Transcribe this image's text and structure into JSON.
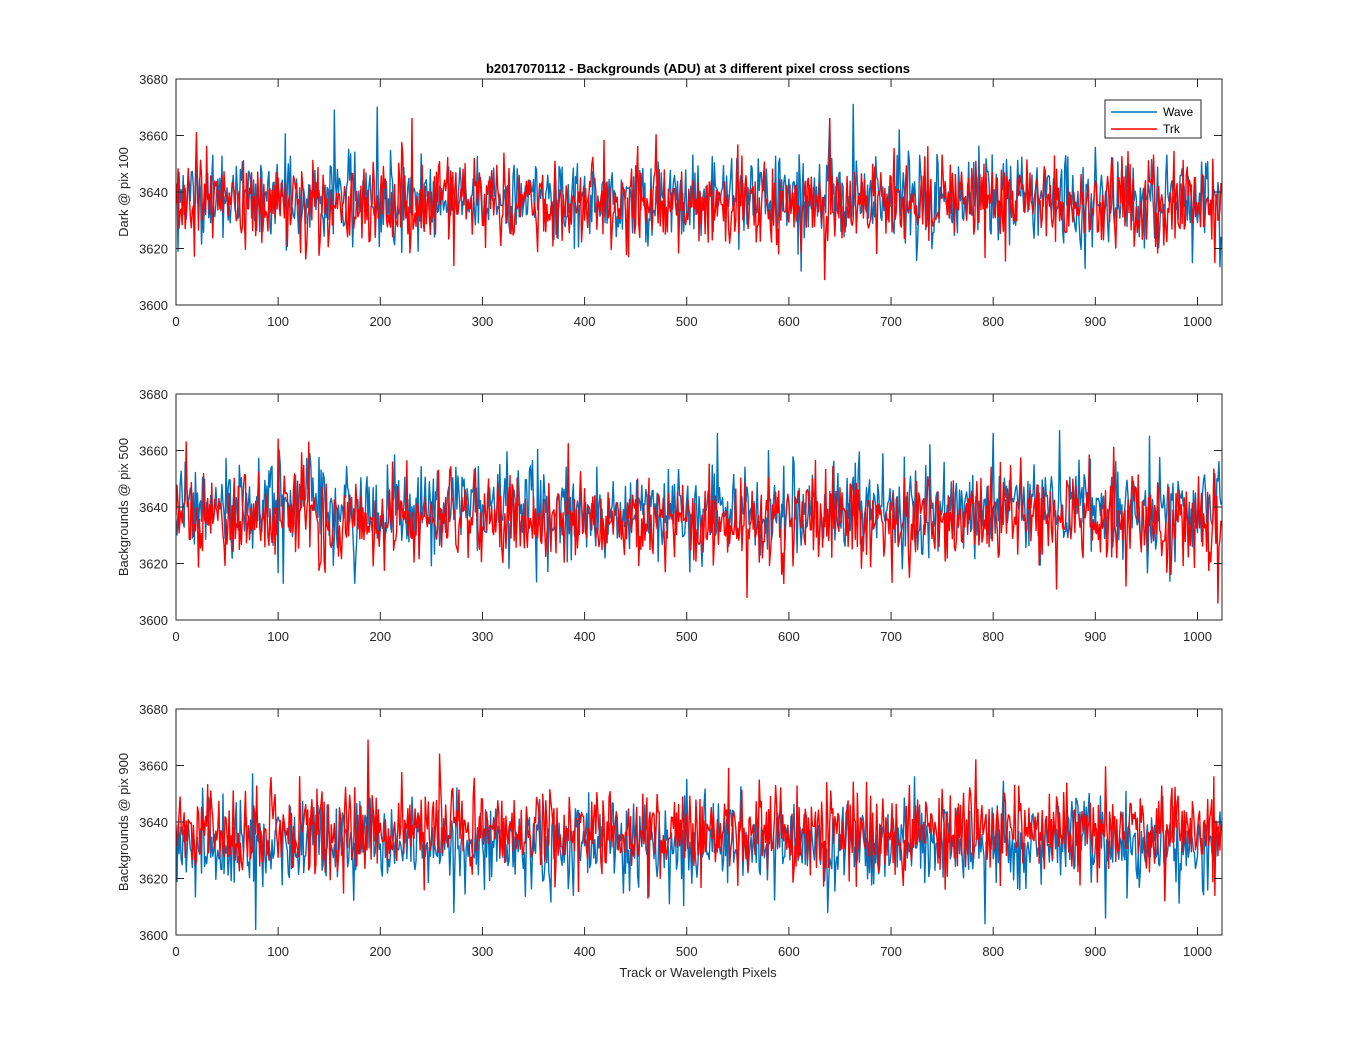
{
  "figure": {
    "title": "b2017070112 - Backgrounds (ADU) at 3 different pixel cross sections",
    "xlabel": "Track or Wavelength Pixels"
  },
  "colors": {
    "wave": "#0072BD",
    "trk": "#FF0000",
    "axis": "#262626",
    "background": "#ffffff"
  },
  "legend": {
    "location": "top-right of first panel",
    "entries": [
      "Wave",
      "Trk"
    ]
  },
  "chart_data": [
    {
      "type": "line",
      "ylabel": "Dark @ pix 100",
      "xlim": [
        0,
        1024
      ],
      "ylim": [
        3600,
        3680
      ],
      "xticks": [
        0,
        100,
        200,
        300,
        400,
        500,
        600,
        700,
        800,
        900,
        1000
      ],
      "yticks": [
        3600,
        3620,
        3640,
        3660,
        3680
      ],
      "grid": false,
      "noise_description": "dense per-pixel noise, one point per pixel 0-1023",
      "series": [
        {
          "name": "Wave",
          "color": "#0072BD",
          "mean": 3638,
          "std": 7.5,
          "peaks": [
            {
              "x": 155,
              "y": 3669
            },
            {
              "x": 197,
              "y": 3670
            },
            {
              "x": 663,
              "y": 3671
            },
            {
              "x": 640,
              "y": 3666
            }
          ],
          "troughs": [
            {
              "x": 612,
              "y": 3612
            },
            {
              "x": 890,
              "y": 3613
            },
            {
              "x": 995,
              "y": 3615
            }
          ]
        },
        {
          "name": "Trk",
          "color": "#FF0000",
          "mean": 3636,
          "std": 7.5,
          "peaks": [
            {
              "x": 231,
              "y": 3666
            },
            {
              "x": 20,
              "y": 3661
            },
            {
              "x": 640,
              "y": 3666
            }
          ],
          "troughs": [
            {
              "x": 272,
              "y": 3614
            },
            {
              "x": 635,
              "y": 3609
            },
            {
              "x": 1017,
              "y": 3615
            }
          ]
        }
      ]
    },
    {
      "type": "line",
      "ylabel": "Backgrounds @ pix 500",
      "xlim": [
        0,
        1024
      ],
      "ylim": [
        3600,
        3680
      ],
      "xticks": [
        0,
        100,
        200,
        300,
        400,
        500,
        600,
        700,
        800,
        900,
        1000
      ],
      "yticks": [
        3600,
        3620,
        3640,
        3660,
        3680
      ],
      "grid": false,
      "noise_description": "dense per-pixel noise, one point per pixel 0-1023",
      "series": [
        {
          "name": "Wave",
          "color": "#0072BD",
          "mean": 3639,
          "std": 8,
          "peaks": [
            {
              "x": 530,
              "y": 3666
            },
            {
              "x": 800,
              "y": 3666
            },
            {
              "x": 865,
              "y": 3667
            }
          ],
          "troughs": [
            {
              "x": 105,
              "y": 3613
            },
            {
              "x": 175,
              "y": 3613
            },
            {
              "x": 503,
              "y": 3617
            }
          ]
        },
        {
          "name": "Trk",
          "color": "#FF0000",
          "mean": 3636,
          "std": 8,
          "peaks": [
            {
              "x": 10,
              "y": 3663
            },
            {
              "x": 100,
              "y": 3664
            },
            {
              "x": 130,
              "y": 3663
            }
          ],
          "troughs": [
            {
              "x": 1020,
              "y": 3606
            },
            {
              "x": 862,
              "y": 3611
            },
            {
              "x": 930,
              "y": 3612
            }
          ]
        }
      ]
    },
    {
      "type": "line",
      "ylabel": "Backgrounds @ pix 900",
      "xlim": [
        0,
        1024
      ],
      "ylim": [
        3600,
        3680
      ],
      "xticks": [
        0,
        100,
        200,
        300,
        400,
        500,
        600,
        700,
        800,
        900,
        1000
      ],
      "yticks": [
        3600,
        3620,
        3640,
        3660,
        3680
      ],
      "grid": false,
      "noise_description": "dense per-pixel noise, one point per pixel 0-1023",
      "series": [
        {
          "name": "Wave",
          "color": "#0072BD",
          "mean": 3632,
          "std": 8,
          "peaks": [
            {
              "x": 75,
              "y": 3657
            },
            {
              "x": 500,
              "y": 3655
            }
          ],
          "troughs": [
            {
              "x": 78,
              "y": 3602
            },
            {
              "x": 272,
              "y": 3608
            },
            {
              "x": 792,
              "y": 3604
            },
            {
              "x": 910,
              "y": 3606
            }
          ]
        },
        {
          "name": "Trk",
          "color": "#FF0000",
          "mean": 3637,
          "std": 7.5,
          "peaks": [
            {
              "x": 188,
              "y": 3669
            },
            {
              "x": 258,
              "y": 3664
            },
            {
              "x": 783,
              "y": 3662
            }
          ],
          "troughs": [
            {
              "x": 462,
              "y": 3613
            },
            {
              "x": 1017,
              "y": 3614
            }
          ]
        }
      ]
    }
  ]
}
